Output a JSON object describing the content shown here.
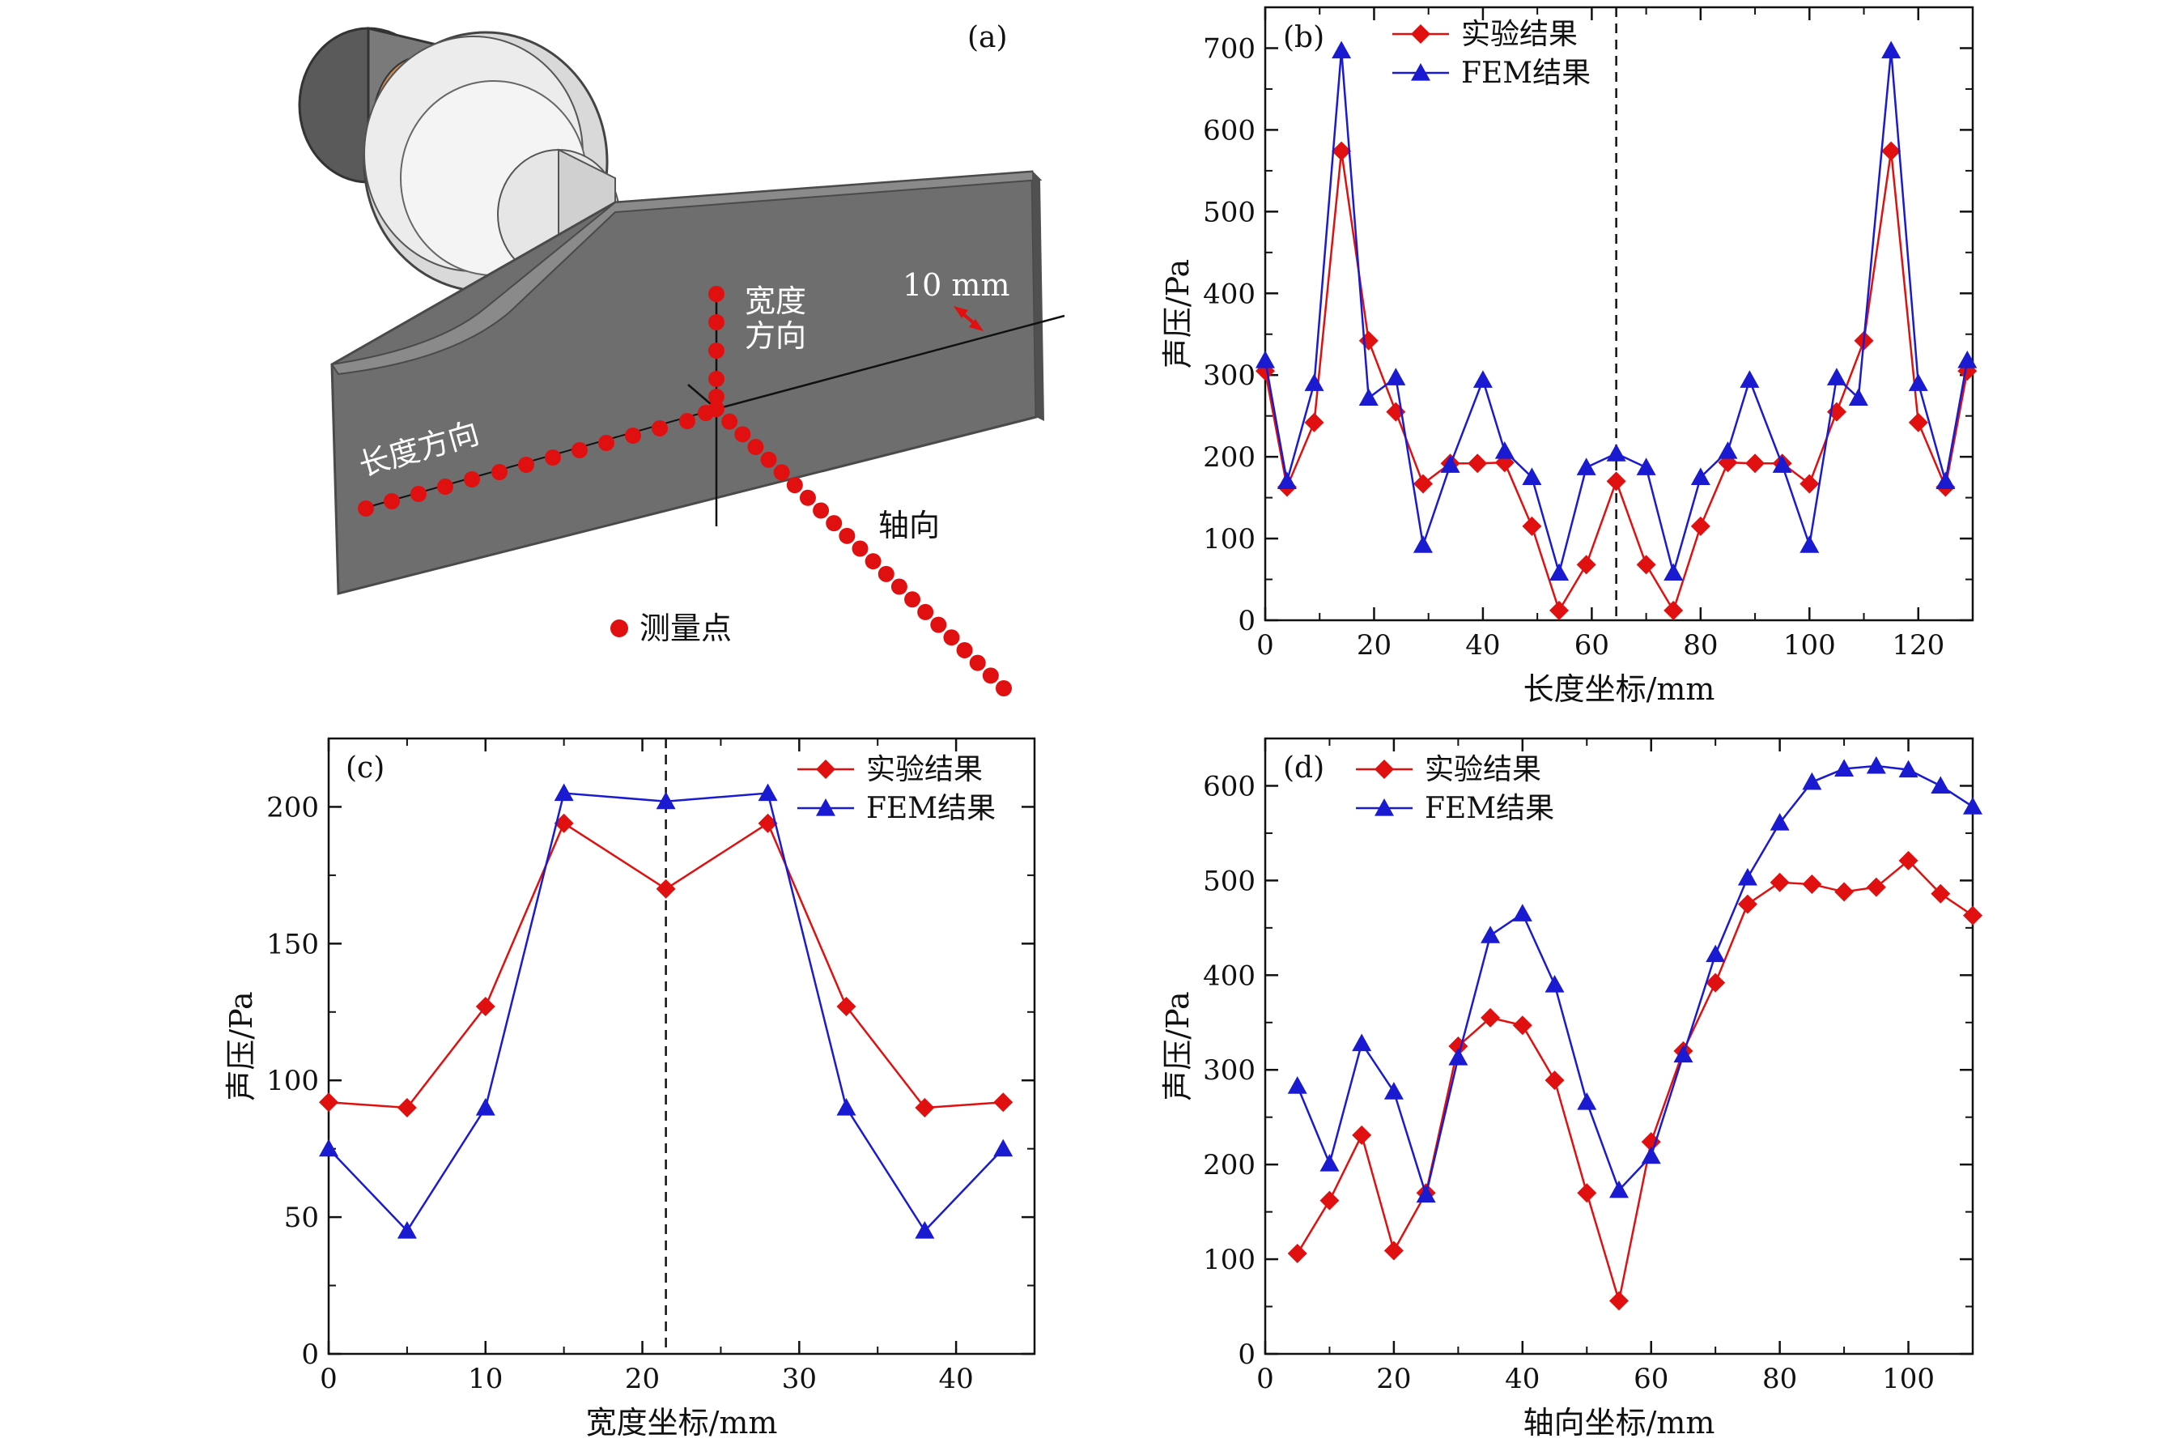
{
  "figure": {
    "panel_a": {
      "tag": "(a)",
      "width_label_line1": "宽度",
      "width_label_line2": "方向",
      "length_label": "长度方向",
      "axial_label": "轴向",
      "scale_label": "10 mm",
      "legend_label": "测量点",
      "colors": {
        "point": "#e01010",
        "plate": "#6e6e6e",
        "plate_top": "#8a8a8a",
        "plate_edge": "#505050"
      }
    }
  },
  "colors": {
    "exp": "#e01010",
    "fem": "#1a1ad0",
    "axis": "#111111"
  },
  "chart_data": [
    {
      "id": "b",
      "type": "line",
      "tag": "(b)",
      "xlabel": "长度坐标/mm",
      "ylabel": "声压/Pa",
      "xlim": [
        0,
        130
      ],
      "ylim": [
        0,
        750
      ],
      "xticks": [
        0,
        20,
        40,
        60,
        80,
        100,
        120
      ],
      "yticks": [
        0,
        100,
        200,
        300,
        400,
        500,
        600,
        700
      ],
      "vline": 64.5,
      "legend": [
        "实验结果",
        "FEM结果"
      ],
      "series": [
        {
          "name": "实验结果",
          "marker": "diamond",
          "x": [
            0,
            4,
            9,
            14,
            19,
            24,
            29,
            34,
            39,
            44,
            49,
            54,
            59,
            64.5,
            70,
            75,
            80,
            85,
            90,
            95,
            100,
            105,
            110,
            115,
            120,
            125,
            129
          ],
          "y": [
            305,
            163,
            242,
            574,
            342,
            255,
            167,
            192,
            192,
            193,
            115,
            12,
            68,
            170,
            68,
            12,
            115,
            193,
            192,
            192,
            167,
            255,
            342,
            574,
            242,
            163,
            305
          ]
        },
        {
          "name": "FEM结果",
          "marker": "triangle",
          "x": [
            0,
            4,
            9,
            14,
            19,
            24,
            29,
            34,
            40,
            44,
            49,
            54,
            59,
            64.5,
            70,
            75,
            80,
            85,
            89,
            95,
            100,
            105,
            109,
            115,
            120,
            125,
            129
          ],
          "y": [
            318,
            170,
            290,
            697,
            272,
            297,
            92,
            190,
            294,
            207,
            175,
            58,
            187,
            204,
            187,
            58,
            175,
            207,
            294,
            190,
            92,
            297,
            272,
            697,
            290,
            170,
            318
          ]
        }
      ]
    },
    {
      "id": "c",
      "type": "line",
      "tag": "(c)",
      "xlabel": "宽度坐标/mm",
      "ylabel": "声压/Pa",
      "xlim": [
        0,
        45
      ],
      "ylim": [
        0,
        225
      ],
      "xticks": [
        0,
        10,
        20,
        30,
        40
      ],
      "yticks": [
        0,
        50,
        100,
        150,
        200
      ],
      "vline": 21.5,
      "legend": [
        "实验结果",
        "FEM结果"
      ],
      "series": [
        {
          "name": "实验结果",
          "marker": "diamond",
          "x": [
            0,
            5,
            10,
            15,
            21.5,
            28,
            33,
            38,
            43
          ],
          "y": [
            92,
            90,
            127,
            194,
            170,
            194,
            127,
            90,
            92
          ]
        },
        {
          "name": "FEM结果",
          "marker": "triangle",
          "x": [
            0,
            5,
            10,
            15,
            21.5,
            28,
            33,
            38,
            43
          ],
          "y": [
            75,
            45,
            90,
            205,
            202,
            205,
            90,
            45,
            75
          ]
        }
      ]
    },
    {
      "id": "d",
      "type": "line",
      "tag": "(d)",
      "xlabel": "轴向坐标/mm",
      "ylabel": "声压/Pa",
      "xlim": [
        0,
        110
      ],
      "ylim": [
        0,
        650
      ],
      "xticks": [
        0,
        20,
        40,
        60,
        80,
        100
      ],
      "yticks": [
        0,
        100,
        200,
        300,
        400,
        500,
        600
      ],
      "vline": null,
      "legend": [
        "实验结果",
        "FEM结果"
      ],
      "series": [
        {
          "name": "实验结果",
          "marker": "diamond",
          "x": [
            5,
            10,
            15,
            20,
            25,
            30,
            35,
            40,
            45,
            50,
            55,
            60,
            65,
            70,
            75,
            80,
            85,
            90,
            95,
            100,
            105,
            110
          ],
          "y": [
            106,
            162,
            231,
            109,
            170,
            325,
            355,
            347,
            289,
            170,
            56,
            224,
            320,
            392,
            475,
            498,
            496,
            488,
            493,
            521,
            486,
            463
          ]
        },
        {
          "name": "FEM结果",
          "marker": "triangle",
          "x": [
            5,
            10,
            15,
            20,
            25,
            30,
            35,
            40,
            45,
            50,
            55,
            60,
            65,
            70,
            75,
            80,
            85,
            90,
            95,
            100,
            105,
            110
          ],
          "y": [
            283,
            201,
            328,
            277,
            168,
            313,
            442,
            465,
            390,
            266,
            173,
            209,
            316,
            422,
            503,
            561,
            604,
            618,
            621,
            617,
            600,
            578
          ]
        }
      ]
    }
  ]
}
